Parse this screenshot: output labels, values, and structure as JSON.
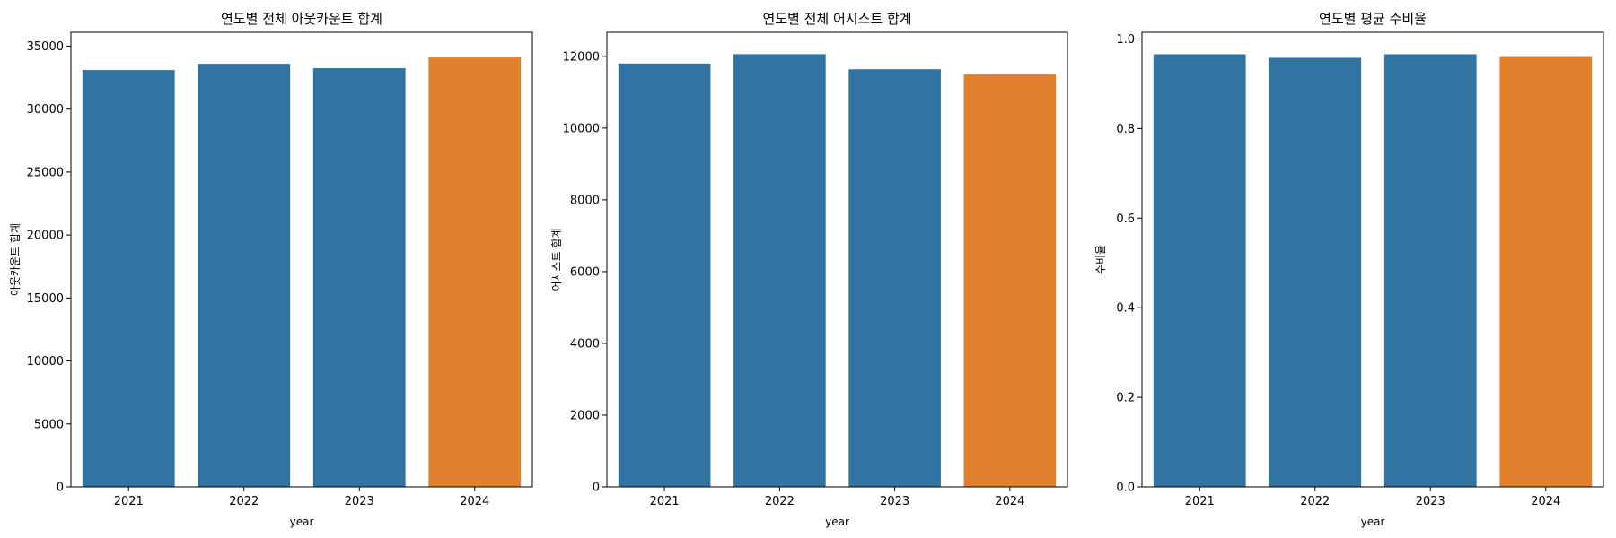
{
  "chart_data": [
    {
      "type": "bar",
      "title": "연도별 전체 아웃카운트 합계",
      "xlabel": "year",
      "ylabel": "아웃카운트 합계",
      "categories": [
        "2021",
        "2022",
        "2023",
        "2024"
      ],
      "values": [
        33100,
        33600,
        33250,
        34100
      ],
      "ylim": [
        0,
        36100
      ],
      "yticks": [
        0,
        5000,
        10000,
        15000,
        20000,
        25000,
        30000,
        35000
      ],
      "bar_colors": [
        "#3274a1",
        "#3274a1",
        "#3274a1",
        "#e1812c"
      ]
    },
    {
      "type": "bar",
      "title": "연도별 전체 어시스트 합계",
      "xlabel": "year",
      "ylabel": "어시스트 합계",
      "categories": [
        "2021",
        "2022",
        "2023",
        "2024"
      ],
      "values": [
        11800,
        12060,
        11640,
        11500
      ],
      "ylim": [
        0,
        12670
      ],
      "yticks": [
        0,
        2000,
        4000,
        6000,
        8000,
        10000,
        12000
      ],
      "bar_colors": [
        "#3274a1",
        "#3274a1",
        "#3274a1",
        "#e1812c"
      ]
    },
    {
      "type": "bar",
      "title": "연도별 평균 수비율",
      "xlabel": "year",
      "ylabel": "수비율",
      "categories": [
        "2021",
        "2022",
        "2023",
        "2024"
      ],
      "values": [
        0.966,
        0.958,
        0.966,
        0.96
      ],
      "ylim": [
        0,
        1.015
      ],
      "yticks": [
        "0.0",
        "0.2",
        "0.4",
        "0.6",
        "0.8",
        "1.0"
      ],
      "bar_colors": [
        "#3274a1",
        "#3274a1",
        "#3274a1",
        "#e1812c"
      ]
    }
  ]
}
